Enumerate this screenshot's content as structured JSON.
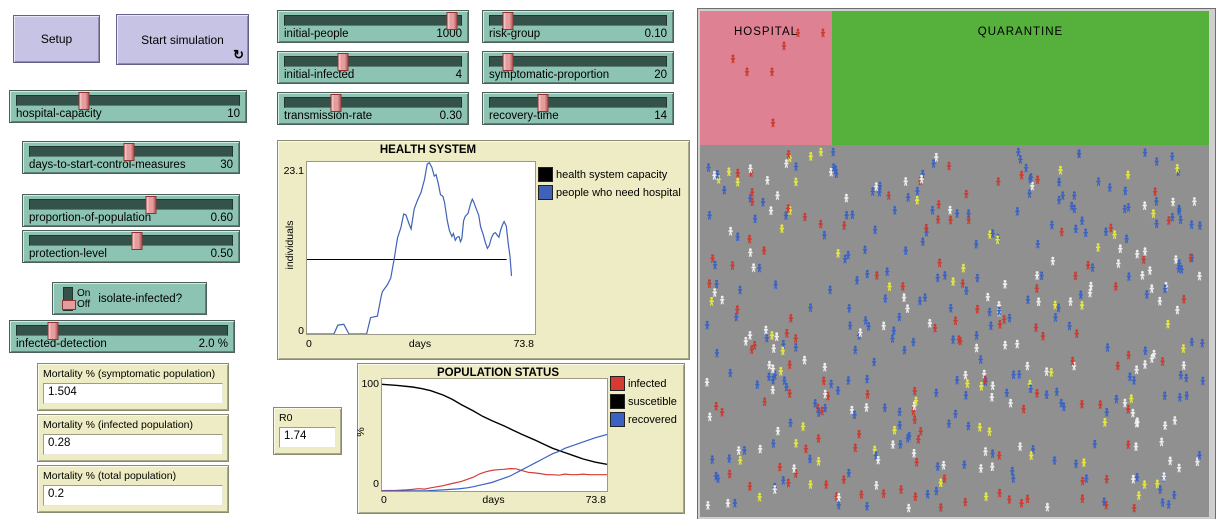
{
  "buttons": {
    "setup_label": "Setup",
    "start_label": "Start simulation",
    "forever_icon": "↻"
  },
  "sliders": [
    {
      "label": "hospital-capacity",
      "value": "10",
      "handle": 0.3
    },
    {
      "label": "days-to-start-control-measures",
      "value": "30",
      "handle": 0.49
    },
    {
      "label": "proportion-of-population",
      "value": "0.60",
      "handle": 0.6
    },
    {
      "label": "protection-level",
      "value": "0.50",
      "handle": 0.53
    },
    {
      "label": "infected-detection",
      "value": "2.0 %",
      "handle": 0.17
    },
    {
      "label": "initial-people",
      "value": "1000",
      "handle": 0.95
    },
    {
      "label": "initial-infected",
      "value": "4",
      "handle": 0.33
    },
    {
      "label": "transmission-rate",
      "value": "0.30",
      "handle": 0.29
    },
    {
      "label": "risk-group",
      "value": "0.10",
      "handle": 0.1
    },
    {
      "label": "symptomatic-proportion",
      "value": "20",
      "handle": 0.1
    },
    {
      "label": "recovery-time",
      "value": "14",
      "handle": 0.3
    }
  ],
  "switch": {
    "label": "isolate-infected?",
    "on_label": "On",
    "off_label": "Off",
    "state": "Off"
  },
  "monitors": [
    {
      "label": "Mortality % (symptomatic population)",
      "value": "1.504"
    },
    {
      "label": "Mortality % (infected population)",
      "value": "0.28"
    },
    {
      "label": "Mortality % (total population)",
      "value": "0.2"
    },
    {
      "label": "R0",
      "value": "1.74"
    }
  ],
  "chart_data": [
    {
      "id": "health-system",
      "type": "line",
      "title": "HEALTH SYSTEM",
      "xlabel": "days",
      "ylabel": "individuals",
      "xlim": [
        0,
        73.8
      ],
      "ylim": [
        0,
        23.1
      ],
      "x_tick_labels": [
        "0",
        "73.8"
      ],
      "y_tick_labels": [
        "0",
        "23.1"
      ],
      "grid": false,
      "legend_position": "right",
      "series": [
        {
          "name": "health system capacity",
          "color": "#000000",
          "width": 1,
          "points": [
            [
              0,
              10
            ],
            [
              64.6,
              10
            ]
          ]
        },
        {
          "name": "people who need hospital",
          "color": "#4062b6",
          "width": 1.2,
          "points": [
            [
              0,
              0
            ],
            [
              8.7,
              0
            ],
            [
              10,
              1.2
            ],
            [
              11.9,
              1.3
            ],
            [
              13.6,
              0
            ],
            [
              19.3,
              0
            ],
            [
              20.6,
              2.2
            ],
            [
              22.8,
              2.4
            ],
            [
              24,
              5
            ],
            [
              24.4,
              5.7
            ],
            [
              26,
              6.6
            ],
            [
              27.1,
              7.5
            ],
            [
              28.2,
              10
            ],
            [
              29.3,
              12.9
            ],
            [
              30.4,
              14.3
            ],
            [
              31.3,
              16.1
            ],
            [
              32,
              16
            ],
            [
              33.1,
              14.7
            ],
            [
              33.7,
              14.1
            ],
            [
              34.7,
              16.8
            ],
            [
              35.8,
              18
            ],
            [
              36.9,
              19
            ],
            [
              38,
              20.7
            ],
            [
              38.9,
              22.8
            ],
            [
              39.6,
              23
            ],
            [
              40.4,
              22.4
            ],
            [
              41.2,
              21.2
            ],
            [
              41.8,
              21.4
            ],
            [
              42.5,
              20.2
            ],
            [
              43.2,
              18.7
            ],
            [
              44,
              18.5
            ],
            [
              44.5,
              17.7
            ],
            [
              45.4,
              15.2
            ],
            [
              46.1,
              13.9
            ],
            [
              46.9,
              13.1
            ],
            [
              47.4,
              13.5
            ],
            [
              48,
              12.6
            ],
            [
              48.6,
              13
            ],
            [
              49.2,
              13.1
            ],
            [
              49.7,
              12.4
            ],
            [
              50.1,
              12.8
            ],
            [
              50.7,
              15.2
            ],
            [
              51.2,
              15.8
            ],
            [
              52.1,
              16.2
            ],
            [
              52.9,
              17.4
            ],
            [
              53.5,
              18.1
            ],
            [
              54,
              17.7
            ],
            [
              54.8,
              16.8
            ],
            [
              55.6,
              15.9
            ],
            [
              56.2,
              14.4
            ],
            [
              57,
              13.4
            ],
            [
              57.7,
              12.3
            ],
            [
              58.4,
              11.5
            ],
            [
              59,
              11.9
            ],
            [
              59.7,
              12.9
            ],
            [
              60.4,
              13.5
            ],
            [
              61,
              13.6
            ],
            [
              61.5,
              13.3
            ],
            [
              62.1,
              13
            ],
            [
              62.7,
              14
            ],
            [
              63.3,
              14.7
            ],
            [
              63.8,
              15.1
            ],
            [
              64.5,
              14.5
            ],
            [
              65.1,
              12.3
            ],
            [
              65.7,
              10.4
            ],
            [
              66.2,
              7.8
            ]
          ]
        }
      ]
    },
    {
      "id": "population-status",
      "type": "line",
      "title": "POPULATION STATUS",
      "xlabel": "days",
      "ylabel": "%",
      "xlim": [
        0,
        73.8
      ],
      "ylim": [
        0,
        105
      ],
      "x_tick_labels": [
        "0",
        "73.8"
      ],
      "y_tick_labels": [
        "0",
        "100"
      ],
      "grid": false,
      "legend_position": "right",
      "series": [
        {
          "name": "infected",
          "color": "#d63b33",
          "width": 1.2,
          "points": [
            [
              0,
              0.4
            ],
            [
              5,
              0.6
            ],
            [
              8,
              1
            ],
            [
              10,
              1.5
            ],
            [
              12,
              2.2
            ],
            [
              14,
              1.8
            ],
            [
              16,
              3
            ],
            [
              20,
              5
            ],
            [
              23,
              7
            ],
            [
              26,
              9
            ],
            [
              28,
              11
            ],
            [
              30,
              13
            ],
            [
              32,
              16
            ],
            [
              34,
              18
            ],
            [
              36,
              19.3
            ],
            [
              38,
              20
            ],
            [
              40,
              20.3
            ],
            [
              42,
              21
            ],
            [
              44,
              20.8
            ],
            [
              46,
              19
            ],
            [
              48,
              17.5
            ],
            [
              50,
              17
            ],
            [
              52,
              16.3
            ],
            [
              54,
              15.3
            ],
            [
              56,
              15.3
            ],
            [
              58,
              14.8
            ],
            [
              60,
              15.8
            ],
            [
              62,
              15.3
            ],
            [
              64,
              15.3
            ],
            [
              66,
              15.8
            ],
            [
              68,
              15.3
            ],
            [
              70,
              15.3
            ],
            [
              73.8,
              15.3
            ]
          ]
        },
        {
          "name": "suscetible",
          "color": "#000000",
          "width": 1.4,
          "points": [
            [
              0,
              100
            ],
            [
              5,
              99
            ],
            [
              10,
              97.5
            ],
            [
              13,
              96
            ],
            [
              16,
              94
            ],
            [
              20,
              90
            ],
            [
              23,
              86
            ],
            [
              26,
              81
            ],
            [
              30,
              75
            ],
            [
              33,
              70
            ],
            [
              36,
              66
            ],
            [
              40,
              61
            ],
            [
              43,
              57
            ],
            [
              46,
              53
            ],
            [
              50,
              48
            ],
            [
              53,
              44
            ],
            [
              56,
              40
            ],
            [
              60,
              36
            ],
            [
              63,
              33
            ],
            [
              66,
              30
            ],
            [
              70,
              27
            ],
            [
              73.8,
              25
            ]
          ]
        },
        {
          "name": "recovered",
          "color": "#3a62c4",
          "width": 1.2,
          "points": [
            [
              0,
              0
            ],
            [
              15,
              0.3
            ],
            [
              20,
              1
            ],
            [
              25,
              2
            ],
            [
              28,
              3
            ],
            [
              30,
              4
            ],
            [
              33,
              6
            ],
            [
              36,
              8
            ],
            [
              38,
              10
            ],
            [
              40,
              12
            ],
            [
              42,
              14
            ],
            [
              44,
              17
            ],
            [
              46,
              20
            ],
            [
              48,
              23
            ],
            [
              50,
              26
            ],
            [
              52,
              29
            ],
            [
              54,
              32
            ],
            [
              56,
              35
            ],
            [
              58,
              37
            ],
            [
              60,
              40
            ],
            [
              62,
              42
            ],
            [
              64,
              44
            ],
            [
              66,
              46
            ],
            [
              68,
              48
            ],
            [
              70,
              50
            ],
            [
              73.8,
              53
            ]
          ]
        }
      ]
    }
  ],
  "world": {
    "hospital_label": "HOSPITAL",
    "quarantine_label": "QUARANTINE",
    "colors": {
      "hospital_bg": "#de8193",
      "quarantine_bg": "#55b03c",
      "field_bg": "#909090",
      "person_blue": "#3a62c4",
      "person_red": "#cc3a30",
      "person_white": "#efefef",
      "person_yellow": "#e6e93c"
    },
    "hospital_people": [
      [
        98,
        22
      ],
      [
        123,
        22
      ],
      [
        84,
        35
      ],
      [
        33,
        48
      ],
      [
        47,
        61
      ],
      [
        72,
        61
      ],
      [
        73,
        112
      ]
    ],
    "field_people": {
      "count": 500,
      "seed": 11,
      "base_weights": {
        "blue": 0.55,
        "red": 0.16,
        "white": 0.21,
        "yellow": 0.08
      }
    }
  }
}
